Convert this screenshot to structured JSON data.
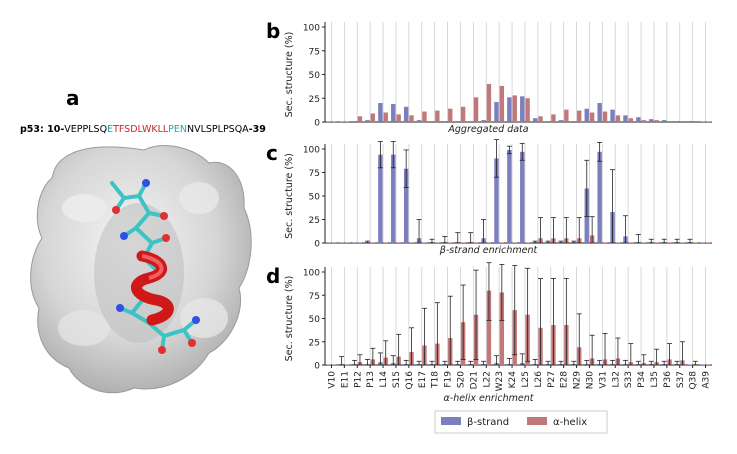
{
  "panel_a": {
    "label": "a",
    "sequence": {
      "prefix": "p53: 10-",
      "s1": "VEPPLSQ",
      "s2": "E",
      "s3": "TFSDLWKLL",
      "s4": "PEN",
      "s5": "NVLSPLPSQA",
      "suffix": "-39"
    }
  },
  "colors": {
    "strand": "#7b7fbd",
    "helix": "#c0787a",
    "seq_black": "#000000",
    "seq_cyan": "#25a5ad",
    "seq_red": "#d42020"
  },
  "legend": {
    "strand": "β-strand",
    "helix": "α-helix"
  },
  "chart_data": [
    {
      "panel": "b",
      "type": "bar",
      "title": "",
      "xlabel": "Aggregated data",
      "ylabel": "Sec. structure (%)",
      "ylim": [
        0,
        100
      ],
      "yticks": [
        0,
        25,
        50,
        75,
        100
      ],
      "categories": [
        "V10",
        "E11",
        "P12",
        "P13",
        "L14",
        "S15",
        "Q16",
        "E17",
        "T18",
        "F19",
        "S20",
        "D21",
        "L22",
        "W23",
        "K24",
        "L25",
        "L26",
        "P27",
        "E28",
        "N29",
        "N30",
        "V31",
        "L32",
        "S33",
        "P34",
        "L35",
        "P36",
        "S37",
        "Q38",
        "A39"
      ],
      "series": [
        {
          "name": "β-strand",
          "values": [
            0,
            0,
            1,
            2,
            20,
            19,
            16,
            2,
            1,
            1,
            1,
            1,
            2,
            21,
            26,
            27,
            4,
            1,
            2,
            1,
            14,
            20,
            13,
            7,
            5,
            3,
            2,
            1,
            1,
            0
          ]
        },
        {
          "name": "α-helix",
          "values": [
            0,
            0,
            6,
            9,
            10,
            8,
            7,
            11,
            12,
            14,
            16,
            26,
            40,
            38,
            28,
            25,
            6,
            8,
            13,
            12,
            10,
            11,
            7,
            4,
            2,
            2,
            1,
            1,
            1,
            0
          ]
        }
      ]
    },
    {
      "panel": "c",
      "type": "bar",
      "xlabel": "β-strand enrichment",
      "ylabel": "Sec. structure (%)",
      "ylim": [
        0,
        100
      ],
      "yticks": [
        0,
        25,
        50,
        75,
        100
      ],
      "categories": [
        "V10",
        "E11",
        "P12",
        "P13",
        "L14",
        "S15",
        "Q16",
        "E17",
        "T18",
        "F19",
        "S20",
        "D21",
        "L22",
        "W23",
        "K24",
        "L25",
        "L26",
        "P27",
        "E28",
        "N29",
        "N30",
        "V31",
        "L32",
        "S33",
        "P34",
        "L35",
        "P36",
        "S37",
        "Q38",
        "A39"
      ],
      "series": [
        {
          "name": "β-strand",
          "values": [
            0,
            0,
            0,
            1,
            94,
            94,
            79,
            5,
            1,
            1,
            1,
            1,
            5,
            90,
            99,
            97,
            1,
            1,
            1,
            1,
            58,
            97,
            33,
            7,
            1,
            1,
            1,
            1,
            1,
            0
          ],
          "errors": [
            0,
            0,
            0,
            1,
            14,
            14,
            20,
            20,
            3,
            6,
            10,
            10,
            20,
            20,
            4,
            9,
            1,
            1,
            1,
            1,
            30,
            10,
            45,
            22,
            8,
            3,
            3,
            3,
            3,
            0
          ]
        },
        {
          "name": "α-helix",
          "values": [
            0,
            0,
            0,
            0,
            0,
            0,
            0,
            0,
            0,
            0,
            0,
            0,
            0,
            0,
            0,
            0,
            5,
            5,
            5,
            5,
            8,
            0,
            0,
            0,
            0,
            0,
            0,
            0,
            0,
            0
          ],
          "errors": [
            0,
            0,
            0,
            0,
            0,
            0,
            0,
            0,
            0,
            0,
            0,
            0,
            0,
            0,
            0,
            0,
            22,
            22,
            22,
            22,
            20,
            0,
            0,
            0,
            0,
            0,
            0,
            0,
            0,
            0
          ]
        }
      ]
    },
    {
      "panel": "d",
      "type": "bar",
      "xlabel": "α-helix enrichment",
      "ylabel": "Sec. structure (%)",
      "ylim": [
        0,
        100
      ],
      "yticks": [
        0,
        25,
        50,
        75,
        100
      ],
      "categories": [
        "V10",
        "E11",
        "P12",
        "P13",
        "L14",
        "S15",
        "Q16",
        "E17",
        "T18",
        "F19",
        "S20",
        "D21",
        "L22",
        "W23",
        "K24",
        "L25",
        "L26",
        "P27",
        "E28",
        "N29",
        "N30",
        "V31",
        "L32",
        "S33",
        "P34",
        "L35",
        "P36",
        "S37",
        "Q38",
        "A39"
      ],
      "series": [
        {
          "name": "β-strand",
          "values": [
            0,
            1,
            1,
            1,
            3,
            2,
            1,
            1,
            1,
            1,
            1,
            1,
            1,
            2,
            1,
            2,
            1,
            1,
            1,
            1,
            1,
            1,
            1,
            1,
            1,
            1,
            1,
            1,
            0,
            0
          ],
          "errors": [
            0,
            8,
            4,
            5,
            10,
            8,
            4,
            3,
            3,
            3,
            3,
            3,
            3,
            8,
            6,
            10,
            5,
            3,
            3,
            3,
            4,
            4,
            4,
            4,
            3,
            3,
            3,
            3,
            0,
            0
          ]
        },
        {
          "name": "α-helix",
          "values": [
            0,
            0,
            3,
            6,
            8,
            9,
            14,
            21,
            23,
            29,
            46,
            54,
            80,
            78,
            59,
            54,
            40,
            43,
            43,
            19,
            7,
            6,
            7,
            3,
            2,
            3,
            6,
            5,
            1,
            0
          ],
          "errors": [
            0,
            0,
            8,
            12,
            18,
            24,
            26,
            40,
            44,
            45,
            40,
            48,
            32,
            30,
            48,
            50,
            53,
            50,
            50,
            36,
            25,
            28,
            22,
            20,
            9,
            14,
            17,
            20,
            3,
            0
          ]
        }
      ]
    }
  ]
}
